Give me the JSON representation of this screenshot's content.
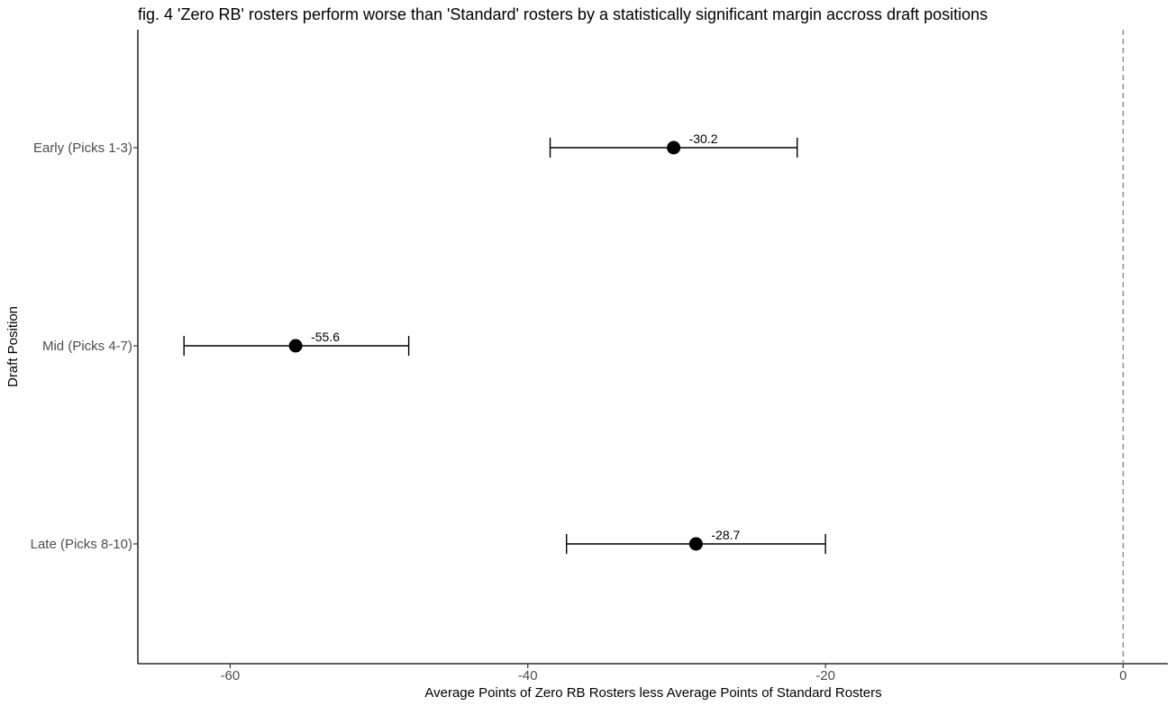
{
  "chart_data": {
    "type": "dot-errorbar",
    "title": "fig. 4 'Zero RB' rosters perform worse than 'Standard' rosters by a statistically significant margin accross draft positions",
    "xlabel": "Average Points of Zero RB Rosters less Average Points of Standard Rosters",
    "ylabel": "Draft Position",
    "xlim": [
      -66.2,
      3.0
    ],
    "x_ticks": [
      -60,
      -40,
      -20,
      0
    ],
    "x_tick_labels": [
      "-60",
      "-40",
      "-20",
      "0"
    ],
    "reference_line": {
      "x": 0,
      "style": "dashed"
    },
    "categories": [
      "Early (Picks 1-3)",
      "Mid (Picks 4-7)",
      "Late (Picks 8-10)"
    ],
    "points": [
      {
        "category": "Early (Picks 1-3)",
        "value": -30.2,
        "lower": -38.5,
        "upper": -21.9,
        "label": "-30.2"
      },
      {
        "category": "Mid (Picks 4-7)",
        "value": -55.6,
        "lower": -63.1,
        "upper": -48.0,
        "label": "-55.6"
      },
      {
        "category": "Late (Picks 8-10)",
        "value": -28.7,
        "lower": -37.4,
        "upper": -20.0,
        "label": "-28.7"
      }
    ],
    "grid": false,
    "colors": {
      "point": "#000000",
      "reference": "#7f7f7f",
      "axis": "#000000"
    }
  }
}
